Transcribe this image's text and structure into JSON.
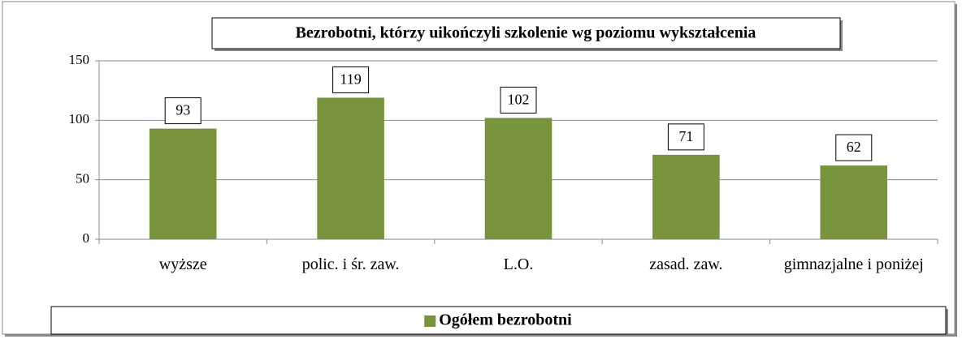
{
  "chart_data": {
    "type": "bar",
    "title": "Bezrobotni, którzy uikończyli szkolenie wg poziomu wykształcenia",
    "categories": [
      "wyższe",
      "polic. i śr. zaw.",
      "L.O.",
      "zasad. zaw.",
      "gimnazjalne i poniżej"
    ],
    "series": [
      {
        "name": "Ogółem bezrobotni",
        "color": "#77933c",
        "values": [
          93,
          119,
          102,
          71,
          62
        ]
      }
    ],
    "ylim": [
      0,
      150
    ],
    "yticks": [
      0,
      50,
      100,
      150
    ],
    "grid": true,
    "legend": "bottom"
  }
}
